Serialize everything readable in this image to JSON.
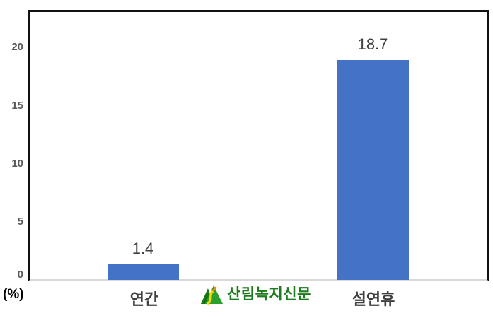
{
  "chart_data": {
    "type": "bar",
    "title": "",
    "categories": [
      "연간",
      "설연휴"
    ],
    "values": [
      1.4,
      18.7
    ],
    "series": [
      {
        "name": "",
        "values": [
          1.4,
          18.7
        ]
      }
    ],
    "xlabel": "",
    "ylabel": "(%)",
    "ylim": [
      0,
      23
    ],
    "yticks": [
      0,
      5,
      10,
      15,
      20
    ],
    "grid": false,
    "legend": false,
    "bar_color": "#4472C4"
  },
  "y_axis": {
    "tick_labels": [
      "20",
      "15",
      "10",
      "5",
      "0"
    ],
    "unit_label": "(%)"
  },
  "watermark": {
    "icon": "mountain-logo-icon",
    "text": "산림녹지신문",
    "text_color": "#1E7B1E"
  },
  "colors": {
    "bar": "#4472C4",
    "plot_border": "#111111",
    "axis_baseline": "#D9D9D9",
    "tick_label": "#595959",
    "category_label": "#3F3F3F",
    "value_label": "#404040",
    "logo_dark_green": "#157515",
    "logo_green": "#2BA02B",
    "logo_yellow": "#FFD400"
  }
}
